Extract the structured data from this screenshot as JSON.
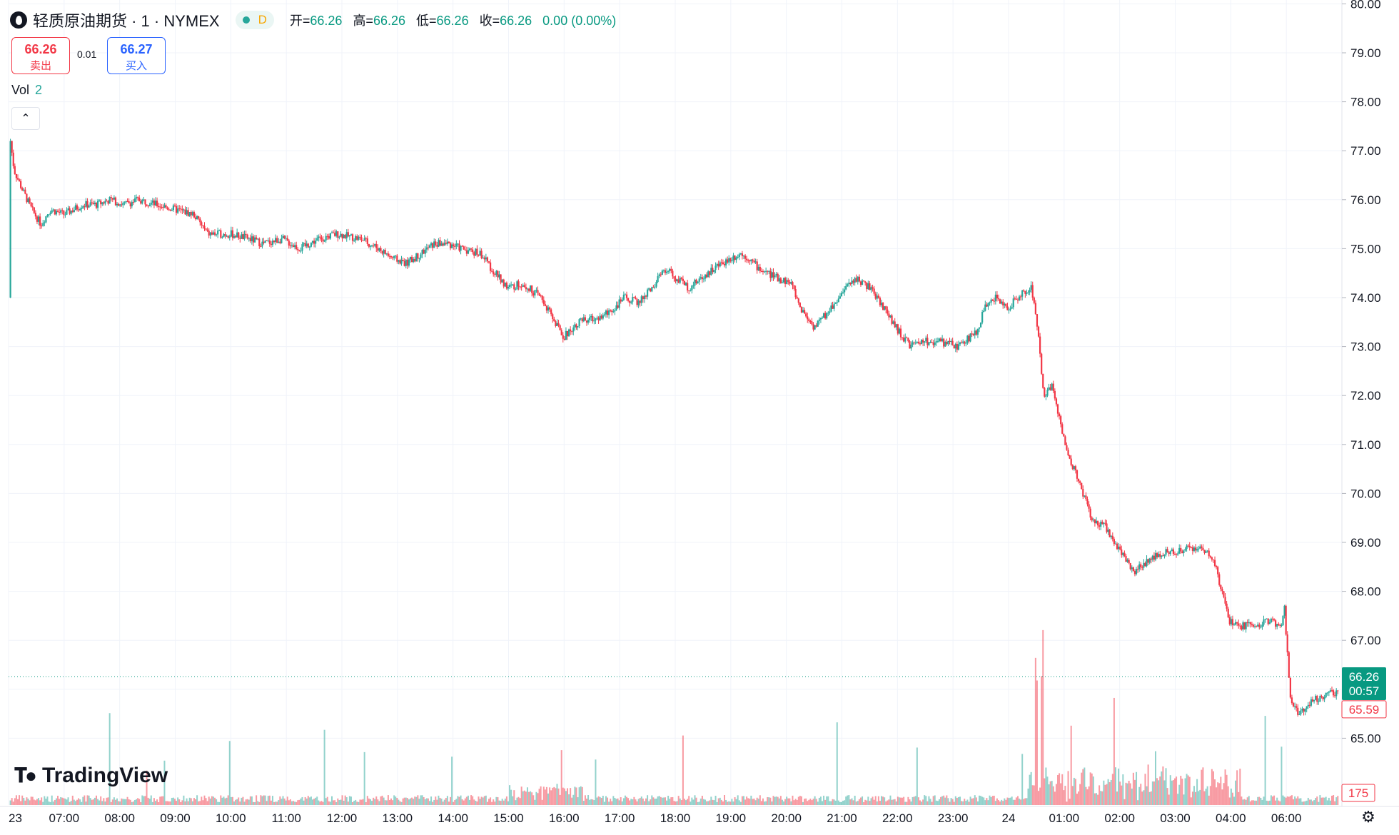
{
  "header": {
    "title": "轻质原油期货 · 1 · NYMEX",
    "timeframe_badge": "D",
    "ohlc": [
      {
        "label": "开=",
        "value": "66.26"
      },
      {
        "label": "高=",
        "value": "66.26"
      },
      {
        "label": "低=",
        "value": "66.26"
      },
      {
        "label": "收=",
        "value": "66.26"
      }
    ],
    "change": "0.00 (0.00%)"
  },
  "trade": {
    "sell_price": "66.26",
    "sell_label": "卖出",
    "spread": "0.01",
    "buy_price": "66.27",
    "buy_label": "买入"
  },
  "volume_legend": {
    "label": "Vol",
    "value": "2"
  },
  "branding": {
    "logo_text": "TradingView"
  },
  "colors": {
    "up": "#26a69a",
    "down": "#f23645",
    "accent": "#089981",
    "grid": "#f0f3fa"
  },
  "chart_data": {
    "type": "candlestick",
    "title": "轻质原油期货 · 1 · NYMEX",
    "ylim": [
      64.0,
      80.0
    ],
    "y_ticks": [
      "65.00",
      "66.00",
      "67.00",
      "68.00",
      "69.00",
      "70.00",
      "71.00",
      "72.00",
      "73.00",
      "74.00",
      "75.00",
      "76.00",
      "77.00",
      "78.00",
      "79.00",
      "80.00"
    ],
    "x_ticks": [
      {
        "label": "23",
        "t": 0
      },
      {
        "label": "07:00",
        "t": 60
      },
      {
        "label": "08:00",
        "t": 120
      },
      {
        "label": "09:00",
        "t": 180
      },
      {
        "label": "10:00",
        "t": 240
      },
      {
        "label": "11:00",
        "t": 300
      },
      {
        "label": "12:00",
        "t": 360
      },
      {
        "label": "13:00",
        "t": 420
      },
      {
        "label": "14:00",
        "t": 480
      },
      {
        "label": "15:00",
        "t": 540
      },
      {
        "label": "16:00",
        "t": 600
      },
      {
        "label": "17:00",
        "t": 660
      },
      {
        "label": "18:00",
        "t": 720
      },
      {
        "label": "19:00",
        "t": 780
      },
      {
        "label": "20:00",
        "t": 840
      },
      {
        "label": "21:00",
        "t": 900
      },
      {
        "label": "22:00",
        "t": 960
      },
      {
        "label": "23:00",
        "t": 1020
      },
      {
        "label": "24",
        "t": 1080
      },
      {
        "label": "01:00",
        "t": 1140
      },
      {
        "label": "02:00",
        "t": 1200
      },
      {
        "label": "03:00",
        "t": 1260
      },
      {
        "label": "04:00",
        "t": 1320
      },
      {
        "label": "06:00",
        "t": 1380
      }
    ],
    "t_range": [
      0,
      1440
    ],
    "price_path": [
      [
        0,
        74.0
      ],
      [
        2,
        77.2
      ],
      [
        6,
        76.6
      ],
      [
        15,
        76.2
      ],
      [
        25,
        75.8
      ],
      [
        35,
        75.5
      ],
      [
        45,
        75.8
      ],
      [
        60,
        75.7
      ],
      [
        80,
        75.9
      ],
      [
        95,
        75.9
      ],
      [
        110,
        76.0
      ],
      [
        125,
        75.9
      ],
      [
        140,
        76.0
      ],
      [
        160,
        75.9
      ],
      [
        180,
        75.8
      ],
      [
        200,
        75.7
      ],
      [
        215,
        75.3
      ],
      [
        240,
        75.3
      ],
      [
        260,
        75.2
      ],
      [
        275,
        75.1
      ],
      [
        295,
        75.2
      ],
      [
        315,
        75.0
      ],
      [
        335,
        75.2
      ],
      [
        355,
        75.3
      ],
      [
        380,
        75.2
      ],
      [
        400,
        75.0
      ],
      [
        415,
        74.8
      ],
      [
        430,
        74.7
      ],
      [
        445,
        74.9
      ],
      [
        460,
        75.1
      ],
      [
        475,
        75.1
      ],
      [
        490,
        75.0
      ],
      [
        510,
        74.9
      ],
      [
        525,
        74.5
      ],
      [
        540,
        74.2
      ],
      [
        555,
        74.3
      ],
      [
        575,
        74.0
      ],
      [
        590,
        73.5
      ],
      [
        600,
        73.2
      ],
      [
        615,
        73.5
      ],
      [
        640,
        73.6
      ],
      [
        655,
        73.8
      ],
      [
        665,
        74.0
      ],
      [
        680,
        73.9
      ],
      [
        695,
        74.2
      ],
      [
        710,
        74.6
      ],
      [
        720,
        74.4
      ],
      [
        735,
        74.2
      ],
      [
        755,
        74.5
      ],
      [
        770,
        74.7
      ],
      [
        790,
        74.9
      ],
      [
        800,
        74.8
      ],
      [
        810,
        74.6
      ],
      [
        830,
        74.4
      ],
      [
        845,
        74.3
      ],
      [
        855,
        73.8
      ],
      [
        870,
        73.4
      ],
      [
        885,
        73.7
      ],
      [
        900,
        74.1
      ],
      [
        915,
        74.4
      ],
      [
        930,
        74.2
      ],
      [
        945,
        73.8
      ],
      [
        955,
        73.5
      ],
      [
        965,
        73.2
      ],
      [
        975,
        73.0
      ],
      [
        990,
        73.1
      ],
      [
        1005,
        73.1
      ],
      [
        1025,
        73.0
      ],
      [
        1045,
        73.3
      ],
      [
        1055,
        73.8
      ],
      [
        1065,
        74.0
      ],
      [
        1080,
        73.8
      ],
      [
        1095,
        74.1
      ],
      [
        1105,
        74.2
      ],
      [
        1112,
        73.3
      ],
      [
        1118,
        72.0
      ],
      [
        1128,
        72.2
      ],
      [
        1136,
        71.4
      ],
      [
        1145,
        70.8
      ],
      [
        1158,
        70.1
      ],
      [
        1170,
        69.5
      ],
      [
        1185,
        69.3
      ],
      [
        1195,
        69.0
      ],
      [
        1205,
        68.7
      ],
      [
        1215,
        68.4
      ],
      [
        1228,
        68.6
      ],
      [
        1245,
        68.8
      ],
      [
        1260,
        68.8
      ],
      [
        1275,
        68.9
      ],
      [
        1290,
        68.9
      ],
      [
        1302,
        68.6
      ],
      [
        1310,
        68.0
      ],
      [
        1318,
        67.4
      ],
      [
        1330,
        67.3
      ],
      [
        1345,
        67.3
      ],
      [
        1360,
        67.4
      ],
      [
        1374,
        67.3
      ],
      [
        1378,
        67.7
      ],
      [
        1384,
        65.8
      ],
      [
        1392,
        65.5
      ],
      [
        1410,
        65.8
      ],
      [
        1425,
        65.9
      ],
      [
        1440,
        65.9
      ]
    ],
    "last_price": "66.26",
    "countdown": "00:57",
    "prev_marker": "65.59",
    "volume_marker": "175",
    "volume_series": "Vol"
  }
}
